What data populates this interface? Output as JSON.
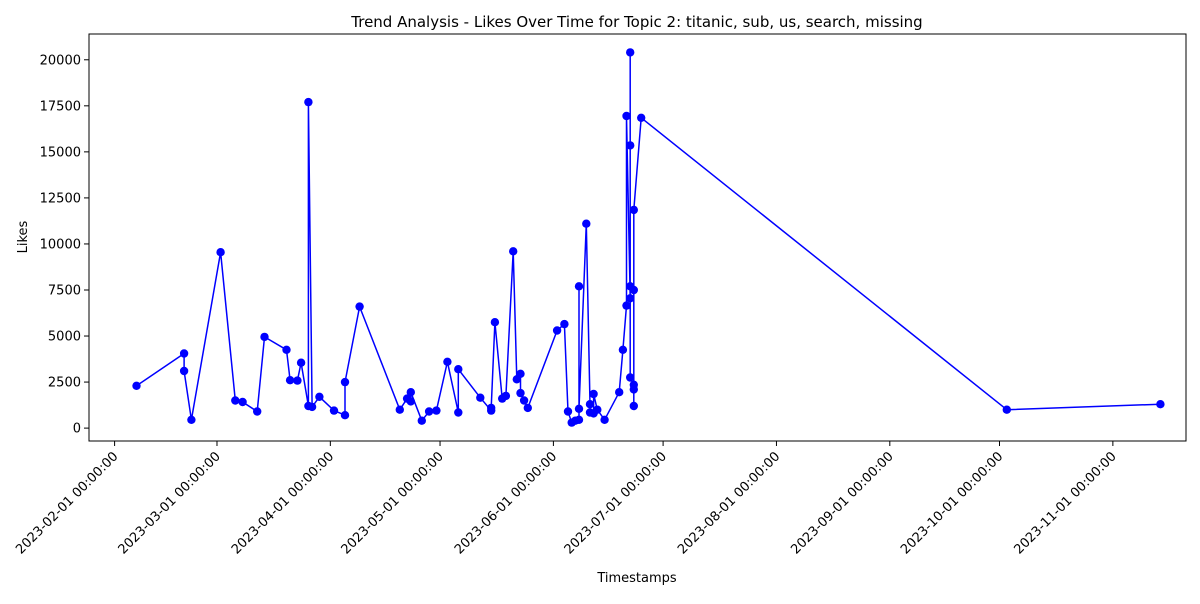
{
  "chart_data": {
    "type": "line",
    "title": "Trend Analysis - Likes Over Time for Topic 2: titanic, sub, us, search, missing",
    "xlabel": "Timestamps",
    "ylabel": "Likes",
    "ylim": [
      -700,
      21400
    ],
    "xlim": [
      "2023-01-25",
      "2023-11-21"
    ],
    "grid": false,
    "line_color": "#0000ff",
    "marker_color": "#0000ff",
    "y_ticks": [
      0,
      2500,
      5000,
      7500,
      10000,
      12500,
      15000,
      17500,
      20000
    ],
    "x_ticks": [
      {
        "date": "2023-02-01",
        "label": "2023-02-01 00:00:00"
      },
      {
        "date": "2023-03-01",
        "label": "2023-03-01 00:00:00"
      },
      {
        "date": "2023-04-01",
        "label": "2023-04-01 00:00:00"
      },
      {
        "date": "2023-05-01",
        "label": "2023-05-01 00:00:00"
      },
      {
        "date": "2023-06-01",
        "label": "2023-06-01 00:00:00"
      },
      {
        "date": "2023-07-01",
        "label": "2023-07-01 00:00:00"
      },
      {
        "date": "2023-08-01",
        "label": "2023-08-01 00:00:00"
      },
      {
        "date": "2023-09-01",
        "label": "2023-09-01 00:00:00"
      },
      {
        "date": "2023-10-01",
        "label": "2023-10-01 00:00:00"
      },
      {
        "date": "2023-11-01",
        "label": "2023-11-01 00:00:00"
      }
    ],
    "series": [
      {
        "points": [
          {
            "x": "2023-02-07",
            "y": 2300
          },
          {
            "x": "2023-02-20",
            "y": 4050
          },
          {
            "x": "2023-02-20",
            "y": 3100
          },
          {
            "x": "2023-02-22",
            "y": 450
          },
          {
            "x": "2023-03-02",
            "y": 9550
          },
          {
            "x": "2023-03-06",
            "y": 1500
          },
          {
            "x": "2023-03-08",
            "y": 1420
          },
          {
            "x": "2023-03-12",
            "y": 900
          },
          {
            "x": "2023-03-14",
            "y": 4950
          },
          {
            "x": "2023-03-20",
            "y": 4250
          },
          {
            "x": "2023-03-21",
            "y": 2600
          },
          {
            "x": "2023-03-23",
            "y": 2580
          },
          {
            "x": "2023-03-24",
            "y": 3550
          },
          {
            "x": "2023-03-26",
            "y": 1200
          },
          {
            "x": "2023-03-26",
            "y": 17700
          },
          {
            "x": "2023-03-27",
            "y": 1150
          },
          {
            "x": "2023-03-29",
            "y": 1700
          },
          {
            "x": "2023-04-02",
            "y": 950
          },
          {
            "x": "2023-04-05",
            "y": 700
          },
          {
            "x": "2023-04-05",
            "y": 2500
          },
          {
            "x": "2023-04-09",
            "y": 6600
          },
          {
            "x": "2023-04-20",
            "y": 1000
          },
          {
            "x": "2023-04-22",
            "y": 1600
          },
          {
            "x": "2023-04-23",
            "y": 1450
          },
          {
            "x": "2023-04-23",
            "y": 1950
          },
          {
            "x": "2023-04-26",
            "y": 400
          },
          {
            "x": "2023-04-28",
            "y": 900
          },
          {
            "x": "2023-04-30",
            "y": 950
          },
          {
            "x": "2023-05-03",
            "y": 3600
          },
          {
            "x": "2023-05-06",
            "y": 850
          },
          {
            "x": "2023-05-06",
            "y": 3200
          },
          {
            "x": "2023-05-12",
            "y": 1650
          },
          {
            "x": "2023-05-15",
            "y": 950
          },
          {
            "x": "2023-05-15",
            "y": 1100
          },
          {
            "x": "2023-05-16",
            "y": 5750
          },
          {
            "x": "2023-05-18",
            "y": 1600
          },
          {
            "x": "2023-05-19",
            "y": 1750
          },
          {
            "x": "2023-05-21",
            "y": 9600
          },
          {
            "x": "2023-05-22",
            "y": 2650
          },
          {
            "x": "2023-05-23",
            "y": 2950
          },
          {
            "x": "2023-05-23",
            "y": 1900
          },
          {
            "x": "2023-05-24",
            "y": 1500
          },
          {
            "x": "2023-05-25",
            "y": 1100
          },
          {
            "x": "2023-06-02",
            "y": 5300
          },
          {
            "x": "2023-06-04",
            "y": 5650
          },
          {
            "x": "2023-06-05",
            "y": 900
          },
          {
            "x": "2023-06-06",
            "y": 300
          },
          {
            "x": "2023-06-07",
            "y": 400
          },
          {
            "x": "2023-06-08",
            "y": 450
          },
          {
            "x": "2023-06-08",
            "y": 7700
          },
          {
            "x": "2023-06-08",
            "y": 1050
          },
          {
            "x": "2023-06-10",
            "y": 11100
          },
          {
            "x": "2023-06-11",
            "y": 1300
          },
          {
            "x": "2023-06-11",
            "y": 850
          },
          {
            "x": "2023-06-12",
            "y": 800
          },
          {
            "x": "2023-06-12",
            "y": 1850
          },
          {
            "x": "2023-06-13",
            "y": 1000
          },
          {
            "x": "2023-06-15",
            "y": 450
          },
          {
            "x": "2023-06-19",
            "y": 1950
          },
          {
            "x": "2023-06-20",
            "y": 4250
          },
          {
            "x": "2023-06-21",
            "y": 6650
          },
          {
            "x": "2023-06-21",
            "y": 16950
          },
          {
            "x": "2023-06-22",
            "y": 7050
          },
          {
            "x": "2023-06-22",
            "y": 2750
          },
          {
            "x": "2023-06-22",
            "y": 15350
          },
          {
            "x": "2023-06-22",
            "y": 20400
          },
          {
            "x": "2023-06-22",
            "y": 7700
          },
          {
            "x": "2023-06-23",
            "y": 7500
          },
          {
            "x": "2023-06-23",
            "y": 1200
          },
          {
            "x": "2023-06-23",
            "y": 2100
          },
          {
            "x": "2023-06-23",
            "y": 2350
          },
          {
            "x": "2023-06-23",
            "y": 11850
          },
          {
            "x": "2023-06-25",
            "y": 16850
          },
          {
            "x": "2023-10-03",
            "y": 1000
          },
          {
            "x": "2023-11-14",
            "y": 1300
          }
        ]
      }
    ]
  }
}
